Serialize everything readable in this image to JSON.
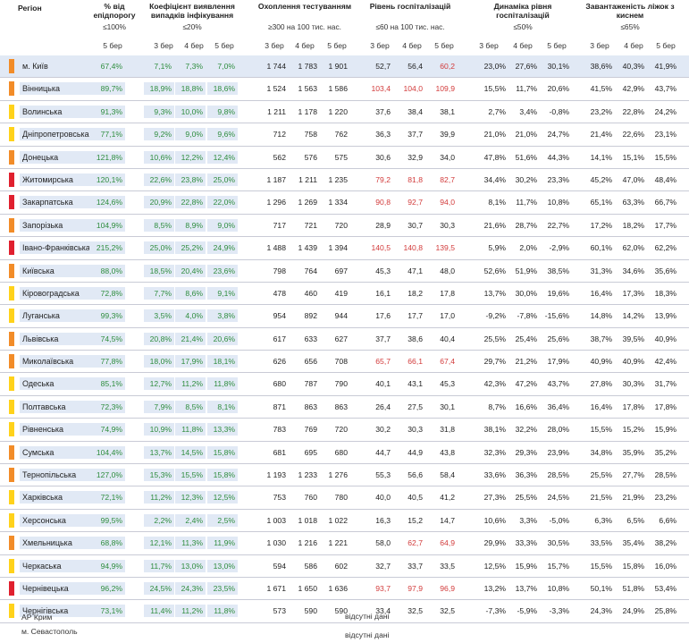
{
  "header": {
    "region": "Регіон",
    "epid": "% від епідпорогу",
    "epid_sub": "≤100%",
    "koef": "Коефіцієнт виявлення випадків інфікування",
    "koef_sub": "≤20%",
    "tests": "Охоплення тестуванням",
    "tests_sub": "≥300 на 100 тис. нас.",
    "hosp": "Рівень госпіталізацій",
    "hosp_sub": "≤60 на 100 тис. нас.",
    "dyn": "Динаміка рівня госпіталізацій",
    "dyn_sub": "≤50%",
    "beds": "Завантаженість ліжок з киснем",
    "beds_sub": "≤65%",
    "w3": "3 бер",
    "w4": "4 бер",
    "w5": "5 бер"
  },
  "colors": {
    "orange": "#f28c28",
    "yellow": "#ffd21a",
    "red": "#e0202e",
    "green_text": "#2f8d3f",
    "red_text": "#d23b3b",
    "shade": "#e1e9f5"
  },
  "rows": [
    {
      "region": "м. Київ",
      "zone": "orange",
      "epid": "67,4%",
      "koef": [
        "7,1%",
        "7,3%",
        "7,0%"
      ],
      "tests": [
        "1 744",
        "1 783",
        "1 901"
      ],
      "hosp": [
        "52,7",
        "56,4",
        "60,2"
      ],
      "hosp_red": [
        false,
        false,
        true
      ],
      "dyn": [
        "23,0%",
        "27,6%",
        "30,1%"
      ],
      "beds": [
        "38,6%",
        "40,3%",
        "41,9%"
      ]
    },
    {
      "region": "Вінницька",
      "zone": "orange",
      "epid": "89,7%",
      "koef": [
        "18,9%",
        "18,8%",
        "18,6%"
      ],
      "tests": [
        "1 524",
        "1 563",
        "1 586"
      ],
      "hosp": [
        "103,4",
        "104,0",
        "109,9"
      ],
      "hosp_red": [
        true,
        true,
        true
      ],
      "dyn": [
        "15,5%",
        "11,7%",
        "20,6%"
      ],
      "beds": [
        "41,5%",
        "42,9%",
        "43,7%"
      ]
    },
    {
      "region": "Волинська",
      "zone": "yellow",
      "epid": "91,3%",
      "koef": [
        "9,3%",
        "10,0%",
        "9,8%"
      ],
      "tests": [
        "1 211",
        "1 178",
        "1 220"
      ],
      "hosp": [
        "37,6",
        "38,4",
        "38,1"
      ],
      "hosp_red": [
        false,
        false,
        false
      ],
      "dyn": [
        "2,7%",
        "3,4%",
        "-0,8%"
      ],
      "beds": [
        "23,2%",
        "22,8%",
        "24,2%"
      ]
    },
    {
      "region": "Дніпропетровська",
      "zone": "yellow",
      "epid": "77,1%",
      "koef": [
        "9,2%",
        "9,0%",
        "9,6%"
      ],
      "tests": [
        "712",
        "758",
        "762"
      ],
      "hosp": [
        "36,3",
        "37,7",
        "39,9"
      ],
      "hosp_red": [
        false,
        false,
        false
      ],
      "dyn": [
        "21,0%",
        "21,0%",
        "24,7%"
      ],
      "beds": [
        "21,4%",
        "22,6%",
        "23,1%"
      ]
    },
    {
      "region": "Донецька",
      "zone": "orange",
      "epid": "121,8%",
      "koef": [
        "10,6%",
        "12,2%",
        "12,4%"
      ],
      "tests": [
        "562",
        "576",
        "575"
      ],
      "hosp": [
        "30,6",
        "32,9",
        "34,0"
      ],
      "hosp_red": [
        false,
        false,
        false
      ],
      "dyn": [
        "47,8%",
        "51,6%",
        "44,3%"
      ],
      "beds": [
        "14,1%",
        "15,1%",
        "15,5%"
      ]
    },
    {
      "region": "Житомирська",
      "zone": "red",
      "epid": "120,1%",
      "koef": [
        "22,6%",
        "23,8%",
        "25,0%"
      ],
      "tests": [
        "1 187",
        "1 211",
        "1 235"
      ],
      "hosp": [
        "79,2",
        "81,8",
        "82,7"
      ],
      "hosp_red": [
        true,
        true,
        true
      ],
      "dyn": [
        "34,4%",
        "30,2%",
        "23,3%"
      ],
      "beds": [
        "45,2%",
        "47,0%",
        "48,4%"
      ]
    },
    {
      "region": "Закарпатська",
      "zone": "red",
      "epid": "124,6%",
      "koef": [
        "20,9%",
        "22,8%",
        "22,0%"
      ],
      "tests": [
        "1 296",
        "1 269",
        "1 334"
      ],
      "hosp": [
        "90,8",
        "92,7",
        "94,0"
      ],
      "hosp_red": [
        true,
        true,
        true
      ],
      "dyn": [
        "8,1%",
        "11,7%",
        "10,8%"
      ],
      "beds": [
        "65,1%",
        "63,3%",
        "66,7%"
      ]
    },
    {
      "region": "Запорізька",
      "zone": "orange",
      "epid": "104,9%",
      "koef": [
        "8,5%",
        "8,9%",
        "9,0%"
      ],
      "tests": [
        "717",
        "721",
        "720"
      ],
      "hosp": [
        "28,9",
        "30,7",
        "30,3"
      ],
      "hosp_red": [
        false,
        false,
        false
      ],
      "dyn": [
        "21,6%",
        "28,7%",
        "22,7%"
      ],
      "beds": [
        "17,2%",
        "18,2%",
        "17,7%"
      ]
    },
    {
      "region": "Івано-Франківська",
      "zone": "red",
      "epid": "215,2%",
      "koef": [
        "25,0%",
        "25,2%",
        "24,9%"
      ],
      "tests": [
        "1 488",
        "1 439",
        "1 394"
      ],
      "hosp": [
        "140,5",
        "140,8",
        "139,5"
      ],
      "hosp_red": [
        true,
        true,
        true
      ],
      "dyn": [
        "5,9%",
        "2,0%",
        "-2,9%"
      ],
      "beds": [
        "60,1%",
        "62,0%",
        "62,2%"
      ]
    },
    {
      "region": "Київська",
      "zone": "orange",
      "epid": "88,0%",
      "koef": [
        "18,5%",
        "20,4%",
        "23,6%"
      ],
      "tests": [
        "798",
        "764",
        "697"
      ],
      "hosp": [
        "45,3",
        "47,1",
        "48,0"
      ],
      "hosp_red": [
        false,
        false,
        false
      ],
      "dyn": [
        "52,6%",
        "51,9%",
        "38,5%"
      ],
      "beds": [
        "31,3%",
        "34,6%",
        "35,6%"
      ]
    },
    {
      "region": "Кіровоградська",
      "zone": "yellow",
      "epid": "72,8%",
      "koef": [
        "7,7%",
        "8,6%",
        "9,1%"
      ],
      "tests": [
        "478",
        "460",
        "419"
      ],
      "hosp": [
        "16,1",
        "18,2",
        "17,8"
      ],
      "hosp_red": [
        false,
        false,
        false
      ],
      "dyn": [
        "13,7%",
        "30,0%",
        "19,6%"
      ],
      "beds": [
        "16,4%",
        "17,3%",
        "18,3%"
      ]
    },
    {
      "region": "Луганська",
      "zone": "yellow",
      "epid": "99,3%",
      "koef": [
        "3,5%",
        "4,0%",
        "3,8%"
      ],
      "tests": [
        "954",
        "892",
        "944"
      ],
      "hosp": [
        "17,6",
        "17,7",
        "17,0"
      ],
      "hosp_red": [
        false,
        false,
        false
      ],
      "dyn": [
        "-9,2%",
        "-7,8%",
        "-15,6%"
      ],
      "beds": [
        "14,8%",
        "14,2%",
        "13,9%"
      ]
    },
    {
      "region": "Львівська",
      "zone": "orange",
      "epid": "74,5%",
      "koef": [
        "20,8%",
        "21,4%",
        "20,6%"
      ],
      "tests": [
        "617",
        "633",
        "627"
      ],
      "hosp": [
        "37,7",
        "38,6",
        "40,4"
      ],
      "hosp_red": [
        false,
        false,
        false
      ],
      "dyn": [
        "25,5%",
        "25,4%",
        "25,6%"
      ],
      "beds": [
        "38,7%",
        "39,5%",
        "40,9%"
      ]
    },
    {
      "region": "Миколаївська",
      "zone": "orange",
      "epid": "77,8%",
      "koef": [
        "18,0%",
        "17,9%",
        "18,1%"
      ],
      "tests": [
        "626",
        "656",
        "708"
      ],
      "hosp": [
        "65,7",
        "66,1",
        "67,4"
      ],
      "hosp_red": [
        true,
        true,
        true
      ],
      "dyn": [
        "29,7%",
        "21,2%",
        "17,9%"
      ],
      "beds": [
        "40,9%",
        "40,9%",
        "42,4%"
      ]
    },
    {
      "region": "Одеська",
      "zone": "yellow",
      "epid": "85,1%",
      "koef": [
        "12,7%",
        "11,2%",
        "11,8%"
      ],
      "tests": [
        "680",
        "787",
        "790"
      ],
      "hosp": [
        "40,1",
        "43,1",
        "45,3"
      ],
      "hosp_red": [
        false,
        false,
        false
      ],
      "dyn": [
        "42,3%",
        "47,2%",
        "43,7%"
      ],
      "beds": [
        "27,8%",
        "30,3%",
        "31,7%"
      ]
    },
    {
      "region": "Полтавська",
      "zone": "yellow",
      "epid": "72,3%",
      "koef": [
        "7,9%",
        "8,5%",
        "8,1%"
      ],
      "tests": [
        "871",
        "863",
        "863"
      ],
      "hosp": [
        "26,4",
        "27,5",
        "30,1"
      ],
      "hosp_red": [
        false,
        false,
        false
      ],
      "dyn": [
        "8,7%",
        "16,6%",
        "36,4%"
      ],
      "beds": [
        "16,4%",
        "17,8%",
        "17,8%"
      ]
    },
    {
      "region": "Рівненська",
      "zone": "yellow",
      "epid": "74,9%",
      "koef": [
        "10,9%",
        "11,8%",
        "13,3%"
      ],
      "tests": [
        "783",
        "769",
        "720"
      ],
      "hosp": [
        "30,2",
        "30,3",
        "31,8"
      ],
      "hosp_red": [
        false,
        false,
        false
      ],
      "dyn": [
        "38,1%",
        "32,2%",
        "28,0%"
      ],
      "beds": [
        "15,5%",
        "15,2%",
        "15,9%"
      ]
    },
    {
      "region": "Сумська",
      "zone": "orange",
      "epid": "104,4%",
      "koef": [
        "13,7%",
        "14,5%",
        "15,8%"
      ],
      "tests": [
        "681",
        "695",
        "680"
      ],
      "hosp": [
        "44,7",
        "44,9",
        "43,8"
      ],
      "hosp_red": [
        false,
        false,
        false
      ],
      "dyn": [
        "32,3%",
        "29,3%",
        "23,9%"
      ],
      "beds": [
        "34,8%",
        "35,9%",
        "35,2%"
      ]
    },
    {
      "region": "Тернопільська",
      "zone": "orange",
      "epid": "127,0%",
      "koef": [
        "15,3%",
        "15,5%",
        "15,8%"
      ],
      "tests": [
        "1 193",
        "1 233",
        "1 276"
      ],
      "hosp": [
        "55,3",
        "56,6",
        "58,4"
      ],
      "hosp_red": [
        false,
        false,
        false
      ],
      "dyn": [
        "33,6%",
        "36,3%",
        "28,5%"
      ],
      "beds": [
        "25,5%",
        "27,7%",
        "28,5%"
      ]
    },
    {
      "region": "Харківська",
      "zone": "yellow",
      "epid": "72,1%",
      "koef": [
        "11,2%",
        "12,3%",
        "12,5%"
      ],
      "tests": [
        "753",
        "760",
        "780"
      ],
      "hosp": [
        "40,0",
        "40,5",
        "41,2"
      ],
      "hosp_red": [
        false,
        false,
        false
      ],
      "dyn": [
        "27,3%",
        "25,5%",
        "24,5%"
      ],
      "beds": [
        "21,5%",
        "21,9%",
        "23,2%"
      ]
    },
    {
      "region": "Херсонська",
      "zone": "yellow",
      "epid": "99,5%",
      "koef": [
        "2,2%",
        "2,4%",
        "2,5%"
      ],
      "tests": [
        "1 003",
        "1 018",
        "1 022"
      ],
      "hosp": [
        "16,3",
        "15,2",
        "14,7"
      ],
      "hosp_red": [
        false,
        false,
        false
      ],
      "dyn": [
        "10,6%",
        "3,3%",
        "-5,0%"
      ],
      "beds": [
        "6,3%",
        "6,5%",
        "6,6%"
      ]
    },
    {
      "region": "Хмельницька",
      "zone": "orange",
      "epid": "68,8%",
      "koef": [
        "12,1%",
        "11,3%",
        "11,9%"
      ],
      "tests": [
        "1 030",
        "1 216",
        "1 221"
      ],
      "hosp": [
        "58,0",
        "62,7",
        "64,9"
      ],
      "hosp_red": [
        false,
        true,
        true
      ],
      "dyn": [
        "29,9%",
        "33,3%",
        "30,5%"
      ],
      "beds": [
        "33,5%",
        "35,4%",
        "38,2%"
      ]
    },
    {
      "region": "Черкаська",
      "zone": "yellow",
      "epid": "94,9%",
      "koef": [
        "11,7%",
        "13,0%",
        "13,0%"
      ],
      "tests": [
        "594",
        "586",
        "602"
      ],
      "hosp": [
        "32,7",
        "33,7",
        "33,5"
      ],
      "hosp_red": [
        false,
        false,
        false
      ],
      "dyn": [
        "12,5%",
        "15,9%",
        "15,7%"
      ],
      "beds": [
        "15,5%",
        "15,8%",
        "16,0%"
      ]
    },
    {
      "region": "Чернівецька",
      "zone": "red",
      "epid": "96,2%",
      "koef": [
        "24,5%",
        "24,3%",
        "23,5%"
      ],
      "tests": [
        "1 671",
        "1 650",
        "1 636"
      ],
      "hosp": [
        "93,7",
        "97,9",
        "96,9"
      ],
      "hosp_red": [
        true,
        true,
        true
      ],
      "dyn": [
        "13,2%",
        "13,7%",
        "10,8%"
      ],
      "beds": [
        "50,1%",
        "51,8%",
        "53,4%"
      ]
    },
    {
      "region": "Чернігівська",
      "zone": "yellow",
      "epid": "73,1%",
      "koef": [
        "11,4%",
        "11,2%",
        "11,8%"
      ],
      "tests": [
        "573",
        "590",
        "590"
      ],
      "hosp": [
        "33,4",
        "32,5",
        "32,5"
      ],
      "hosp_red": [
        false,
        false,
        false
      ],
      "dyn": [
        "-7,3%",
        "-5,9%",
        "-3,3%"
      ],
      "beds": [
        "24,3%",
        "24,9%",
        "25,8%"
      ]
    }
  ],
  "footer": {
    "crimea": "АР Крим",
    "sevastopol": "м. Севастополь",
    "no_data_1": "відсутні дані",
    "no_data_2": "відсутні дані"
  }
}
